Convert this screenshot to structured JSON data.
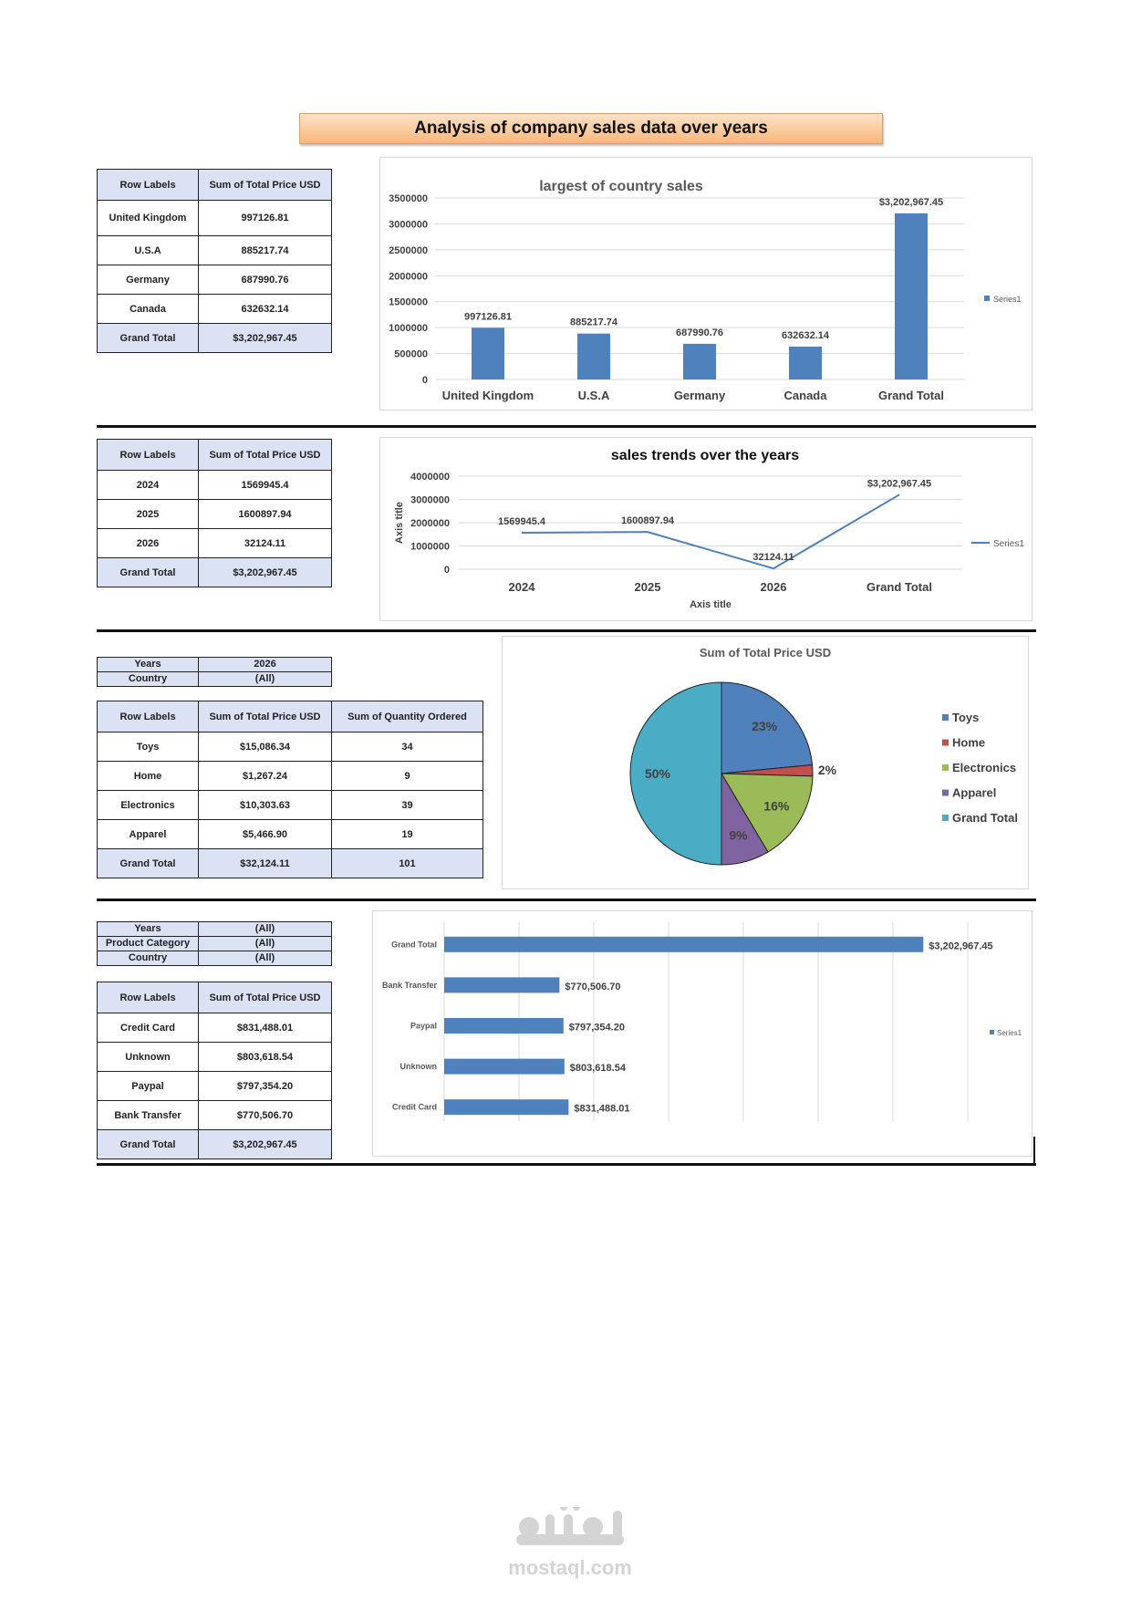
{
  "title": "Analysis of company sales data over years",
  "colors": {
    "bar": "#4f81bd",
    "toys": "#4f81bd",
    "home": "#c0504d",
    "electronics": "#9bbb59",
    "apparel": "#8064a2",
    "grand": "#4bacc6"
  },
  "table1": {
    "headers": [
      "Row Labels",
      "Sum of Total Price USD"
    ],
    "rows": [
      [
        "United Kingdom",
        "997126.81"
      ],
      [
        "U.S.A",
        "885217.74"
      ],
      [
        "Germany",
        "687990.76"
      ],
      [
        "Canada",
        "632632.14"
      ]
    ],
    "total": [
      "Grand Total",
      "$3,202,967.45"
    ]
  },
  "table2": {
    "headers": [
      "Row Labels",
      "Sum of Total Price USD"
    ],
    "rows": [
      [
        "2024",
        "1569945.4"
      ],
      [
        "2025",
        "1600897.94"
      ],
      [
        "2026",
        "32124.11"
      ]
    ],
    "total": [
      "Grand Total",
      "$3,202,967.45"
    ]
  },
  "filter3": [
    [
      "Years",
      "2026"
    ],
    [
      "Country",
      "(All)"
    ]
  ],
  "table3": {
    "headers": [
      "Row Labels",
      "Sum of Total Price USD",
      "Sum of Quantity Ordered"
    ],
    "rows": [
      [
        "Toys",
        "$15,086.34",
        "34"
      ],
      [
        "Home",
        "$1,267.24",
        "9"
      ],
      [
        "Electronics",
        "$10,303.63",
        "39"
      ],
      [
        "Apparel",
        "$5,466.90",
        "19"
      ]
    ],
    "total": [
      "Grand Total",
      "$32,124.11",
      "101"
    ]
  },
  "filter4": [
    [
      "Years",
      "(All)"
    ],
    [
      "Product Category",
      "(All)"
    ],
    [
      "Country",
      "(All)"
    ]
  ],
  "table4": {
    "headers": [
      "Row Labels",
      "Sum of Total Price USD"
    ],
    "rows": [
      [
        "Credit Card",
        "$831,488.01"
      ],
      [
        "Unknown",
        "$803,618.54"
      ],
      [
        "Paypal",
        "$797,354.20"
      ],
      [
        "Bank Transfer",
        "$770,506.70"
      ]
    ],
    "total": [
      "Grand Total",
      "$3,202,967.45"
    ]
  },
  "chart_data": [
    {
      "type": "bar",
      "title": "largest of country sales",
      "categories": [
        "United Kingdom",
        "U.S.A",
        "Germany",
        "Canada",
        "Grand Total"
      ],
      "values": [
        997126.81,
        885217.74,
        687990.76,
        632632.14,
        3202967.45
      ],
      "data_labels": [
        "997126.81",
        "885217.74",
        "687990.76",
        "632632.14",
        "$3,202,967.45"
      ],
      "yticks": [
        "0",
        "500000",
        "1000000",
        "1500000",
        "2000000",
        "2500000",
        "3000000",
        "3500000"
      ],
      "ylim": [
        0,
        3500000
      ],
      "legend": "Series1",
      "legend_position": "right"
    },
    {
      "type": "line",
      "title": "sales  trends over the years",
      "categories": [
        "2024",
        "2025",
        "2026",
        "Grand Total"
      ],
      "values": [
        1569945.4,
        1600897.94,
        32124.11,
        3202967.45
      ],
      "data_labels": [
        "1569945.4",
        "1600897.94",
        "32124.11",
        "$3,202,967.45"
      ],
      "yticks": [
        "0",
        "1000000",
        "2000000",
        "3000000",
        "4000000"
      ],
      "ylim": [
        0,
        4000000
      ],
      "xlabel": "Axis title",
      "ylabel": "Axis title",
      "legend": "Series1",
      "legend_position": "right"
    },
    {
      "type": "pie",
      "title": "Sum of Total Price USD",
      "categories": [
        "Toys",
        "Home",
        "Electronics",
        "Apparel",
        "Grand Total"
      ],
      "values": [
        15086.34,
        1267.24,
        10303.63,
        5466.9,
        32124.11
      ],
      "data_labels": [
        "23%",
        "2%",
        "16%",
        "9%",
        "50%"
      ],
      "legend_position": "right"
    },
    {
      "type": "bar",
      "orientation": "horizontal",
      "categories": [
        "Grand Total",
        "Bank Transfer",
        "Paypal",
        "Unknown",
        "Credit Card"
      ],
      "values": [
        3202967.45,
        770506.7,
        797354.2,
        803618.54,
        831488.01
      ],
      "data_labels": [
        "$3,202,967.45",
        "$770,506.70",
        "$797,354.20",
        "$803,618.54",
        "$831,488.01"
      ],
      "xlim": [
        0,
        3500000
      ],
      "legend": "Series1",
      "legend_position": "right"
    }
  ]
}
